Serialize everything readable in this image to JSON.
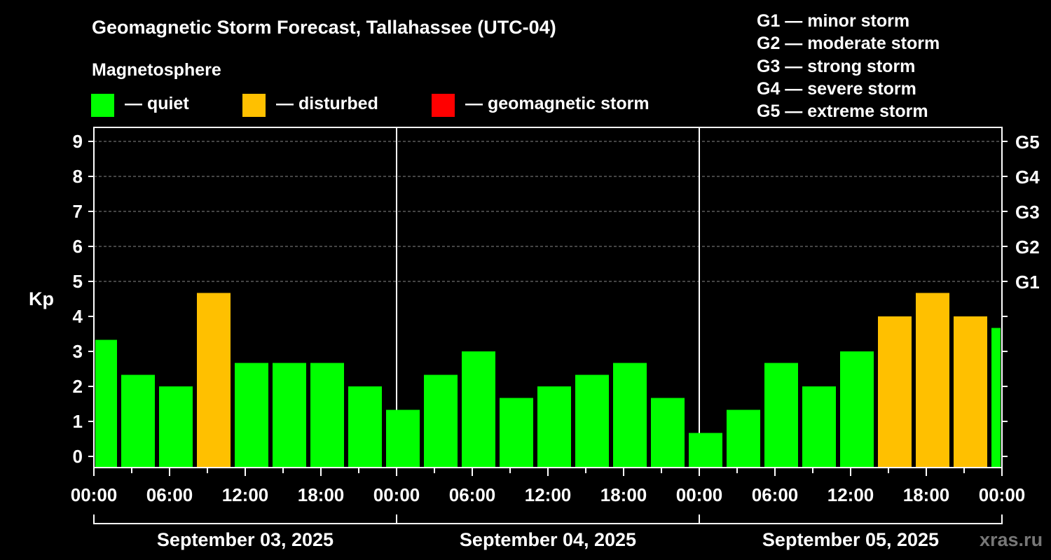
{
  "chart_data": {
    "type": "bar",
    "title": "Geomagnetic Storm Forecast, Tallahassee (UTC-04)",
    "ylabel": "Kp",
    "ylim": [
      0,
      9
    ],
    "yticks": [
      "0",
      "1",
      "2",
      "3",
      "4",
      "5",
      "6",
      "7",
      "8",
      "9"
    ],
    "right_labels": [
      {
        "kp": 5,
        "label": "G1"
      },
      {
        "kp": 6,
        "label": "G2"
      },
      {
        "kp": 7,
        "label": "G3"
      },
      {
        "kp": 8,
        "label": "G4"
      },
      {
        "kp": 9,
        "label": "G5"
      }
    ],
    "xticks": [
      "00:00",
      "06:00",
      "12:00",
      "18:00",
      "00:00",
      "06:00",
      "12:00",
      "18:00",
      "00:00",
      "06:00",
      "12:00",
      "18:00",
      "00:00"
    ],
    "days": [
      "September 03, 2025",
      "September 04, 2025",
      "September 05, 2025"
    ],
    "interval_hours": 3,
    "first_interval_start_hour": -1,
    "values": [
      3.33,
      2.33,
      2.0,
      4.67,
      2.67,
      2.67,
      2.67,
      2.0,
      1.33,
      2.33,
      3.0,
      1.67,
      2.0,
      2.33,
      2.67,
      1.67,
      0.67,
      1.33,
      2.67,
      2.0,
      3.0,
      4.0,
      4.67,
      4.0,
      3.67
    ],
    "colors": {
      "quiet": "#00ff00",
      "disturbed": "#ffc000",
      "storm": "#ff0000"
    },
    "grid": true
  },
  "legend": {
    "heading": "Magnetosphere",
    "items": [
      {
        "label": "— quiet",
        "color": "#00ff00"
      },
      {
        "label": "— disturbed",
        "color": "#ffc000"
      },
      {
        "label": "— geomagnetic storm",
        "color": "#ff0000"
      }
    ]
  },
  "scale": [
    "G1 — minor storm",
    "G2 — moderate storm",
    "G3 — strong storm",
    "G4 — severe storm",
    "G5 — extreme storm"
  ],
  "watermark": "xras.ru"
}
